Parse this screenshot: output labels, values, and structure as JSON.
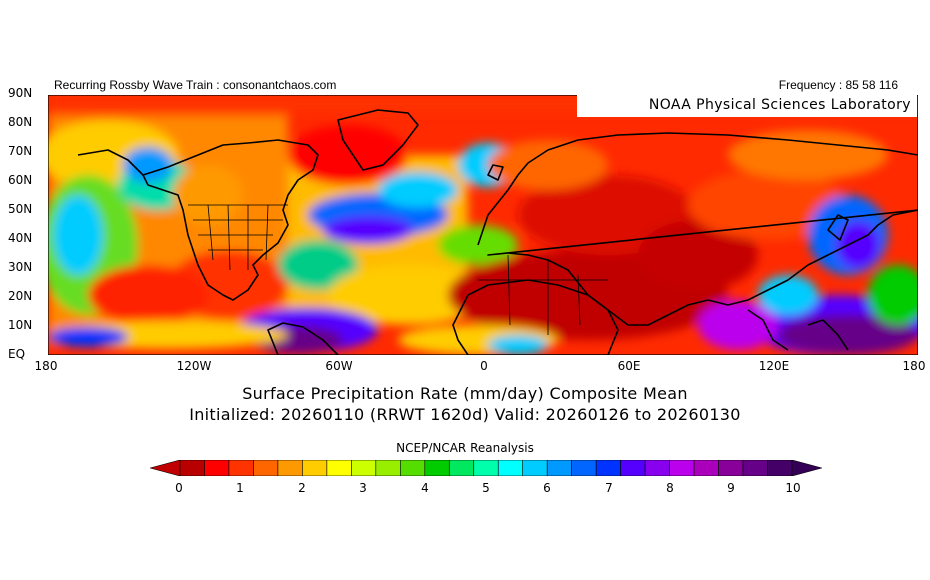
{
  "header": {
    "left_text": "Recurring Rossby Wave Train : consonantchaos.com",
    "right_text": "Frequency : 85 58 116",
    "lab_label": "NOAA Physical Sciences Laboratory"
  },
  "lat_labels": [
    "90N",
    "80N",
    "70N",
    "60N",
    "50N",
    "40N",
    "30N",
    "20N",
    "10N",
    "EQ"
  ],
  "lon_labels": [
    "180",
    "120W",
    "60W",
    "0",
    "60E",
    "120E",
    "180"
  ],
  "title": {
    "line1": "Surface Precipitation Rate (mm/day) Composite Mean",
    "line2": "Initialized: 20260110 (RRWT 1620d) Valid: 20260126 to 20260130"
  },
  "source_label": "NCEP/NCAR Reanalysis",
  "colorbar": {
    "tick_labels": [
      "0",
      "1",
      "2",
      "3",
      "4",
      "5",
      "6",
      "7",
      "8",
      "9",
      "10"
    ],
    "colors": [
      "#b80000",
      "#ff0000",
      "#ff3300",
      "#ff6600",
      "#ff9900",
      "#ffcc00",
      "#ffff00",
      "#ccff00",
      "#99ee00",
      "#55dd00",
      "#00cc00",
      "#00e860",
      "#00ffaa",
      "#00ffff",
      "#00ccff",
      "#0099ff",
      "#0066ff",
      "#0033ff",
      "#5500ff",
      "#8800ee",
      "#bb00ee",
      "#aa00bb",
      "#880099",
      "#660088",
      "#440066"
    ],
    "under_color": "#c00000",
    "over_color": "#330055"
  }
}
